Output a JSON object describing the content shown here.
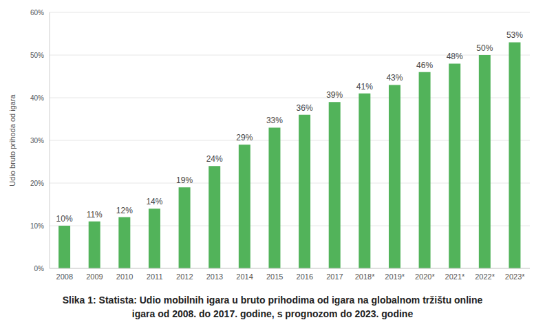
{
  "chart_data": {
    "type": "bar",
    "title": "Slika 1: Statista: Udio mobilnih igara u bruto prihodima od igara na globalnom tržištu online igara od 2008. do 2017. godine, s prognozom do 2023. godine",
    "y_label": "Udio bruto prihoda od igara",
    "categories": [
      "2008",
      "2009",
      "2010",
      "2011",
      "2012",
      "2013",
      "2014",
      "2015",
      "2016",
      "2017",
      "2018*",
      "2019*",
      "2020*",
      "2021*",
      "2022*",
      "2023*"
    ],
    "values": [
      10,
      11,
      12,
      14,
      19,
      24,
      29,
      33,
      36,
      39,
      41,
      43,
      46,
      48,
      50,
      53
    ],
    "value_labels": [
      "10%",
      "11%",
      "12%",
      "14%",
      "19%",
      "24%",
      "29%",
      "33%",
      "36%",
      "39%",
      "41%",
      "43%",
      "46%",
      "48%",
      "50%",
      "53%"
    ],
    "color": "#52b35a",
    "ylim": [
      0,
      60
    ],
    "yticks": [
      {
        "value": 0,
        "label": "0%"
      },
      {
        "value": 10,
        "label": "10%"
      },
      {
        "value": 20,
        "label": "20%"
      },
      {
        "value": 30,
        "label": "30%"
      },
      {
        "value": 40,
        "label": "40%"
      },
      {
        "value": 50,
        "label": "50%"
      },
      {
        "value": 60,
        "label": "60%"
      }
    ],
    "grid": true,
    "data_labels": true
  }
}
